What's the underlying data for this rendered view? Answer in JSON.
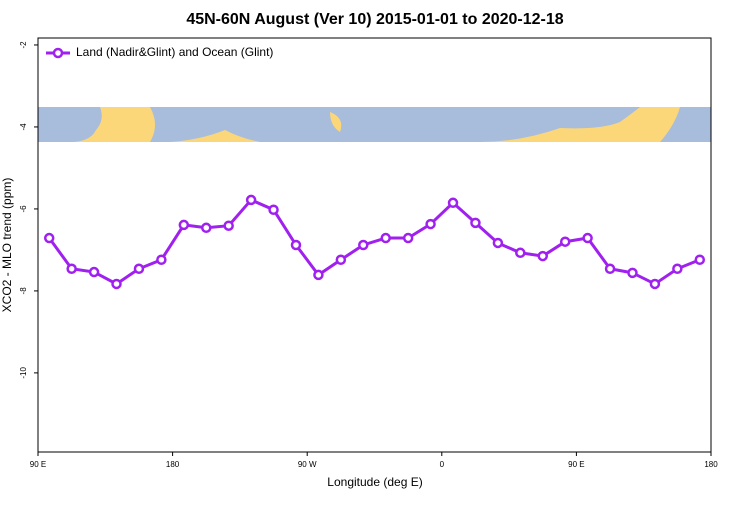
{
  "chart_data": {
    "type": "line",
    "title": "45N-60N August (Ver 10)   2015-01-01 to 2020-12-18",
    "xlabel": "Longitude (deg E)",
    "ylabel": "XCO2 - MLO trend (ppm)",
    "x": [
      97.5,
      112.5,
      127.5,
      142.5,
      157.5,
      172.5,
      187.5,
      202.5,
      217.5,
      232.5,
      247.5,
      262.5,
      277.5,
      292.5,
      307.5,
      322.5,
      337.5,
      352.5,
      367.5,
      382.5,
      397.5,
      412.5,
      427.5,
      442.5,
      457.5,
      472.5,
      487.5,
      502.5,
      517.5,
      532.5
    ],
    "series": [
      {
        "name": "Land (Nadir&Glint) and Ocean (Glint)",
        "color": "#a020f0",
        "values": [
          -6.71,
          -7.46,
          -7.54,
          -7.83,
          -7.46,
          -7.24,
          -6.39,
          -6.46,
          -6.41,
          -5.78,
          -6.02,
          -6.88,
          -7.61,
          -7.24,
          -6.88,
          -6.71,
          -6.71,
          -6.37,
          -5.85,
          -6.34,
          -6.83,
          -7.07,
          -7.15,
          -6.8,
          -6.71,
          -7.46,
          -7.56,
          -7.83,
          -7.46,
          -7.24
        ]
      }
    ],
    "xlim": [
      90,
      540
    ],
    "ylim": [
      -11.93,
      -1.83
    ],
    "xticks": [
      {
        "value": 90,
        "label": "90 E"
      },
      180,
      {
        "value": 270,
        "label": "90 W"
      },
      {
        "value": 360,
        "label": "0"
      },
      {
        "value": 450,
        "label": "90 E"
      },
      {
        "value": 540,
        "label": "180"
      }
    ],
    "yticks": [
      -2,
      -4,
      -6,
      -8,
      -10
    ],
    "legend": "top-left"
  }
}
